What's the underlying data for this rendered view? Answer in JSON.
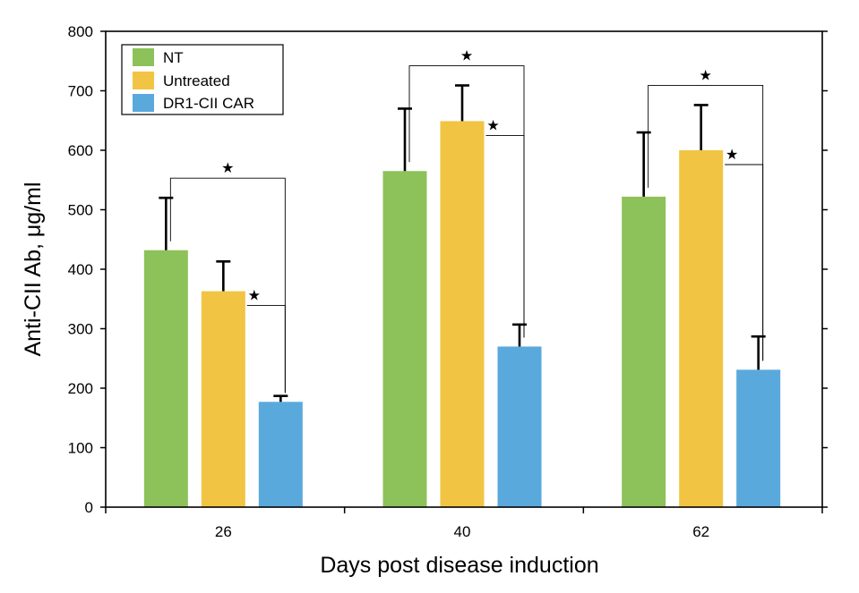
{
  "chart_data": {
    "type": "bar",
    "title": "",
    "xlabel": "Days post disease induction",
    "ylabel": "Anti-CII Ab, μg/ml",
    "ylim": [
      0,
      800
    ],
    "yticks": [
      0,
      100,
      200,
      300,
      400,
      500,
      600,
      700,
      800
    ],
    "categories": [
      "26",
      "40",
      "62"
    ],
    "series": [
      {
        "name": "NT",
        "color": "#8dc15a",
        "values": [
          432,
          565,
          522
        ],
        "errors": [
          88,
          105,
          108
        ]
      },
      {
        "name": "Untreated",
        "color": "#f2c443",
        "values": [
          363,
          649,
          600
        ],
        "errors": [
          50,
          60,
          76
        ]
      },
      {
        "name": "DR1-CII CAR",
        "color": "#5aa9dd",
        "values": [
          177,
          270,
          231
        ],
        "errors": [
          10,
          37,
          56
        ]
      }
    ],
    "significance": [
      {
        "group": 0,
        "from_series": 0,
        "to_series": 2,
        "label": "★"
      },
      {
        "group": 0,
        "from_series": 1,
        "to_series": 2,
        "label": "★"
      },
      {
        "group": 1,
        "from_series": 0,
        "to_series": 2,
        "label": "★"
      },
      {
        "group": 1,
        "from_series": 1,
        "to_series": 2,
        "label": "★"
      },
      {
        "group": 2,
        "from_series": 0,
        "to_series": 2,
        "label": "★"
      },
      {
        "group": 2,
        "from_series": 1,
        "to_series": 2,
        "label": "★"
      }
    ],
    "legend_position": "top-left",
    "grid": false
  }
}
